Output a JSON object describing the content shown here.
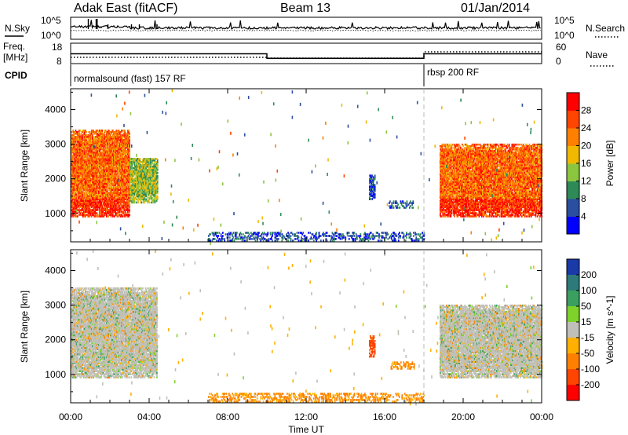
{
  "header": {
    "radar": "Adak East (fitACF)",
    "beam": "Beam 13",
    "date": "01/Jan/2014"
  },
  "status_panels": {
    "nsky_label": "N.Sky",
    "nsearch_label": "N.Search",
    "noise_ticks_left": [
      "10^5",
      "10^0"
    ],
    "noise_ticks_right": [
      "10^5",
      "10^0"
    ],
    "freq_label": "Freq.",
    "freq_unit": "[MHz]",
    "freq_ticks": [
      "18",
      "8"
    ],
    "nave_label": "Nave",
    "nave_ticks": [
      "60",
      "0"
    ],
    "cpid_label": "CPID",
    "cpid_segments": [
      {
        "label": "normalsound (fast) 157 RF",
        "start_hour": 0
      },
      {
        "label": "rbsp 200 RF",
        "start_hour": 18
      }
    ],
    "freq_series": [
      {
        "from_hour": 0,
        "to_hour": 10,
        "freq_mhz": 12.8
      },
      {
        "from_hour": 10,
        "to_hour": 18,
        "freq_mhz": 10.6
      },
      {
        "from_hour": 18,
        "to_hour": 24,
        "freq_mhz": 12.8
      }
    ]
  },
  "chart_data": [
    {
      "type": "heatmap",
      "parameter": "Power",
      "xlabel": "Time UT",
      "ylabel": "Slant Range [km]",
      "xlim_hours": [
        0,
        24
      ],
      "ylim_km": [
        180,
        4600
      ],
      "x_ticks": [
        "00:00",
        "04:00",
        "08:00",
        "12:00",
        "16:00",
        "20:00",
        "00:00"
      ],
      "y_ticks": [
        1000,
        2000,
        3000,
        4000
      ],
      "colorbar": {
        "label": "Power [dB]",
        "ticks": [
          4,
          8,
          12,
          16,
          20,
          24,
          28
        ],
        "range": [
          0,
          30
        ],
        "colors": [
          "#0000ff",
          "#2b4fa0",
          "#2e8a57",
          "#8cc63f",
          "#f0b800",
          "#ff8000",
          "#ff4500",
          "#ff0000"
        ]
      },
      "echo_regions": [
        {
          "t_start": 0.0,
          "t_end": 3.0,
          "r_min": 900,
          "r_max": 3400,
          "value_typ": 24
        },
        {
          "t_start": 3.0,
          "t_end": 4.4,
          "r_min": 1300,
          "r_max": 2600,
          "value_typ": 14
        },
        {
          "t_start": 15.2,
          "t_end": 15.5,
          "r_min": 1400,
          "r_max": 2100,
          "value_typ": 6
        },
        {
          "t_start": 16.2,
          "t_end": 17.5,
          "r_min": 1150,
          "r_max": 1350,
          "value_typ": 6
        },
        {
          "t_start": 18.8,
          "t_end": 24.0,
          "r_min": 900,
          "r_max": 3000,
          "value_typ": 24
        },
        {
          "t_start": 7.0,
          "t_end": 18.0,
          "r_min": 200,
          "r_max": 450,
          "value_typ": 6
        }
      ]
    },
    {
      "type": "heatmap",
      "parameter": "Velocity",
      "xlabel": "Time UT",
      "ylabel": "Slant Range [km]",
      "xlim_hours": [
        0,
        24
      ],
      "ylim_km": [
        180,
        4600
      ],
      "x_ticks": [
        "00:00",
        "04:00",
        "08:00",
        "12:00",
        "16:00",
        "20:00",
        "00:00"
      ],
      "y_ticks": [
        1000,
        2000,
        3000,
        4000
      ],
      "colorbar": {
        "label": "Velocity [m s^-1]",
        "ticks": [
          200,
          100,
          50,
          15,
          -15,
          -50,
          -100,
          -200
        ],
        "colors": [
          "#1a3aa8",
          "#2e7a7a",
          "#3aa060",
          "#7ed22a",
          "#c0c0b8",
          "#ffb000",
          "#ff8000",
          "#ff4500",
          "#ff0000"
        ]
      },
      "echo_regions": [
        {
          "t_start": 0.0,
          "t_end": 4.4,
          "r_min": 900,
          "r_max": 3500,
          "value_typ": 0
        },
        {
          "t_start": 15.2,
          "t_end": 15.5,
          "r_min": 1500,
          "r_max": 2100,
          "value_typ": -120
        },
        {
          "t_start": 16.3,
          "t_end": 17.5,
          "r_min": 1150,
          "r_max": 1350,
          "value_typ": -60
        },
        {
          "t_start": 18.8,
          "t_end": 24.0,
          "r_min": 900,
          "r_max": 3000,
          "value_typ": 0
        },
        {
          "t_start": 7.0,
          "t_end": 18.0,
          "r_min": 200,
          "r_max": 450,
          "value_typ": -60
        }
      ]
    }
  ]
}
